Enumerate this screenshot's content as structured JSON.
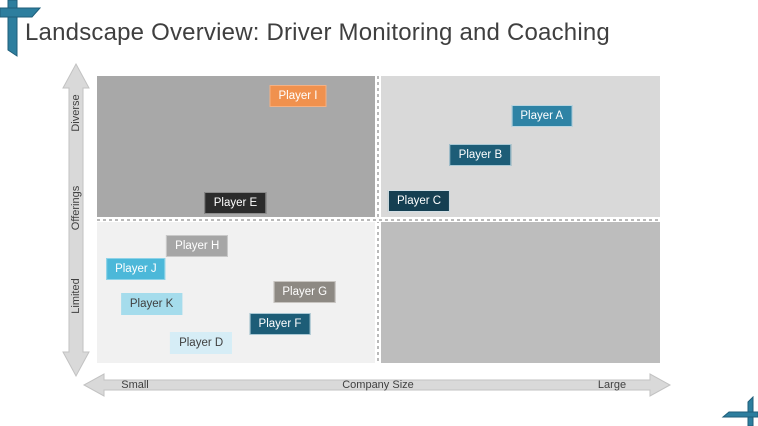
{
  "slide": {
    "title": "Landscape Overview: Driver Monitoring and Coaching",
    "accent_color": "#2d7e9e"
  },
  "axes": {
    "y": {
      "top": "Diverse",
      "title": "Offerings",
      "bottom": "Limited"
    },
    "x": {
      "left": "Small",
      "title": "Company Size",
      "right": "Large"
    }
  },
  "quadrants": {
    "top_left_bg": "#a8a8a8",
    "top_right_bg": "#d9d9d9",
    "bottom_left_bg": "#f1f1f1",
    "bottom_right_bg": "#bdbdbd"
  },
  "chart_data": {
    "type": "scatter",
    "title": "Landscape Overview: Driver Monitoring and Coaching",
    "xlabel": "Company Size",
    "ylabel": "Offerings",
    "x_endpoint_labels": [
      "Small",
      "Large"
    ],
    "y_endpoint_labels": [
      "Limited",
      "Diverse"
    ],
    "x_range": [
      0,
      1
    ],
    "y_range": [
      0,
      1
    ],
    "grid": "2x2 quadrants with dotted dividers",
    "legend": "none",
    "points": [
      {
        "name": "Player A",
        "x": 0.79,
        "y": 0.862,
        "bg": "#2e83a5",
        "text_color": "#ffffff",
        "border": "#b9d5e0"
      },
      {
        "name": "Player B",
        "x": 0.681,
        "y": 0.723,
        "bg": "#1d5d77",
        "text_color": "#ffffff",
        "border": "#a9c8d4"
      },
      {
        "name": "Player C",
        "x": 0.572,
        "y": 0.566,
        "bg": "#153f52",
        "text_color": "#ffffff",
        "border": "#d3dfe5"
      },
      {
        "name": "Player D",
        "x": 0.185,
        "y": 0.071,
        "bg": "#d6edf6",
        "text_color": "#404040",
        "border": "#d6edf6"
      },
      {
        "name": "Player E",
        "x": 0.246,
        "y": 0.556,
        "bg": "#2b2b2b",
        "text_color": "#ffffff",
        "border": "#8a8a8a"
      },
      {
        "name": "Player F",
        "x": 0.325,
        "y": 0.136,
        "bg": "#1d5d77",
        "text_color": "#ffffff",
        "border": "#a9c8d4"
      },
      {
        "name": "Player G",
        "x": 0.369,
        "y": 0.246,
        "bg": "#8d8983",
        "text_color": "#ffffff",
        "border": "#c7c4c0"
      },
      {
        "name": "Player H",
        "x": 0.178,
        "y": 0.408,
        "bg": "#a6a6a6",
        "text_color": "#ffffff",
        "border": "#c9c9c9"
      },
      {
        "name": "Player I",
        "x": 0.357,
        "y": 0.932,
        "bg": "#f0914e",
        "text_color": "#ffffff",
        "border": "#f5b183"
      },
      {
        "name": "Player J",
        "x": 0.069,
        "y": 0.326,
        "bg": "#4cb8d9",
        "text_color": "#ffffff",
        "border": "#8ed3e8"
      },
      {
        "name": "Player K",
        "x": 0.097,
        "y": 0.204,
        "bg": "#a5dcec",
        "text_color": "#404040",
        "border": "#a5dcec"
      }
    ]
  }
}
